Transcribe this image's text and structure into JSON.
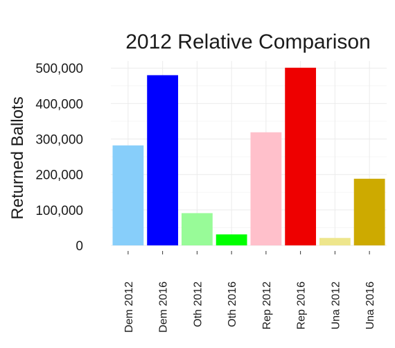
{
  "chart_data": {
    "type": "bar",
    "title": "2012 Relative Comparison",
    "xlabel": "",
    "ylabel": "Returned Ballots",
    "categories": [
      "Dem 2012",
      "Dem 2016",
      "Oth 2012",
      "Oth 2016",
      "Rep 2012",
      "Rep 2016",
      "Una 2012",
      "Una 2016"
    ],
    "values": [
      282000,
      480000,
      91000,
      31000,
      319000,
      501000,
      21000,
      188000
    ],
    "colors": [
      "#87cefa",
      "#0000ff",
      "#98fb98",
      "#00ff00",
      "#ffc0cb",
      "#ee0000",
      "#eee68c",
      "#cdaa00"
    ],
    "ylim": [
      0,
      520000
    ],
    "yticks": [
      0,
      100000,
      200000,
      300000,
      400000,
      500000
    ],
    "ytick_labels": [
      "0",
      "100,000",
      "200,000",
      "300,000",
      "400,000",
      "500,000"
    ],
    "grid": true,
    "legend": "none"
  }
}
